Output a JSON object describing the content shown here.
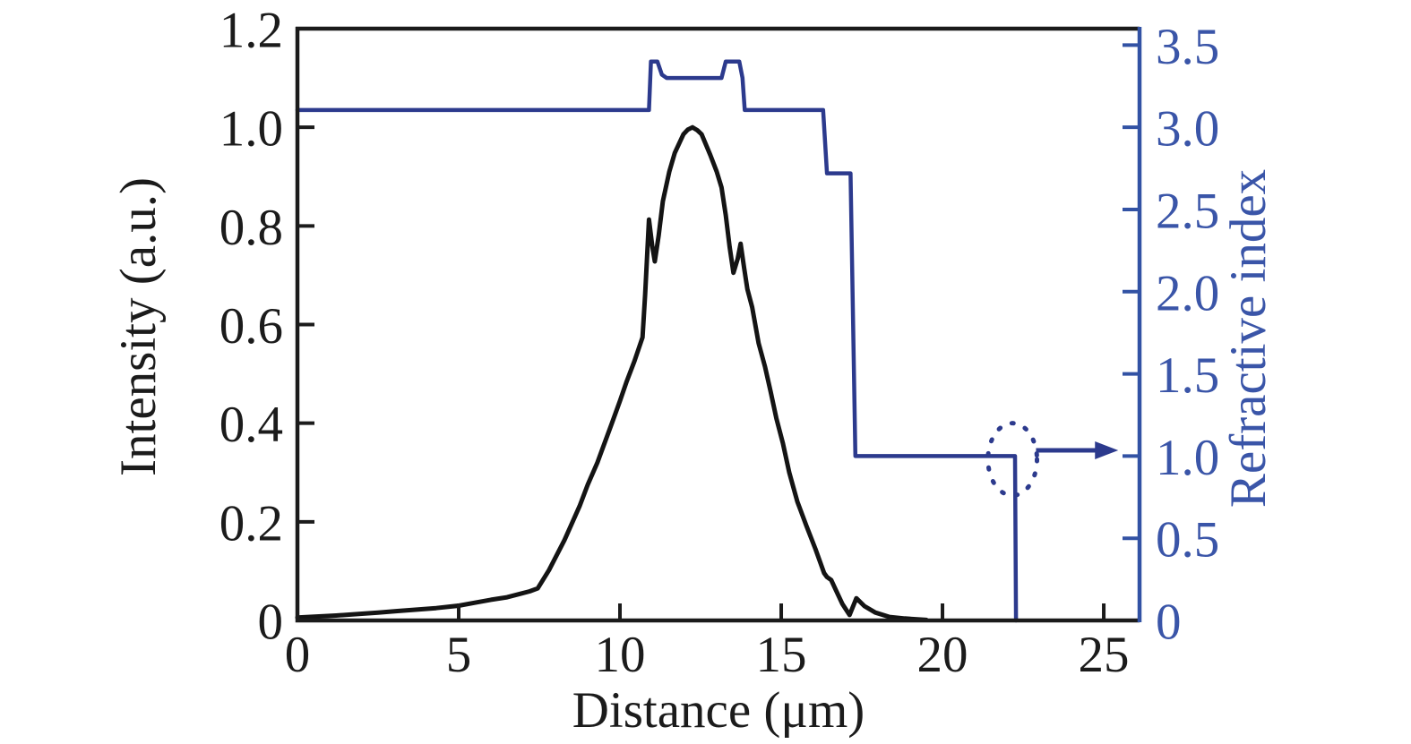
{
  "figure": {
    "background": "#ffffff",
    "colors": {
      "black_axis": "#1b1b1b",
      "intensity_curve": "#141414",
      "index_curve": "#2c3a8d",
      "blue_axis": "#3252a4",
      "blue_text": "#3a55a8"
    },
    "x_axis": {
      "label": "Distance (μm)",
      "range": [
        0,
        26.11
      ],
      "tick_labels": [
        "0",
        "5",
        "10",
        "15",
        "20",
        "25"
      ],
      "tick_values": [
        0,
        5,
        10,
        15,
        20,
        25
      ],
      "tick_marks": [
        5,
        10,
        15,
        20,
        25
      ]
    },
    "y_left": {
      "label": "Intensity (a.u.)",
      "range": [
        0,
        1.2
      ],
      "tick_labels": [
        "0",
        "0.2",
        "0.4",
        "0.6",
        "0.8",
        "1.0",
        "1.2"
      ],
      "tick_values": [
        0,
        0.2,
        0.4,
        0.6,
        0.8,
        1.0,
        1.2
      ],
      "tick_marks": [
        0.2,
        0.4,
        0.6,
        0.8,
        1.0
      ]
    },
    "y_right": {
      "label": "Refractive index",
      "range": [
        0,
        3.6
      ],
      "tick_labels": [
        "0",
        "0.5",
        "1.0",
        "1.5",
        "2.0",
        "2.5",
        "3.0",
        "3.5"
      ],
      "tick_values": [
        0,
        0.5,
        1.0,
        1.5,
        2.0,
        2.5,
        3.0,
        3.5
      ],
      "tick_marks": [
        0.5,
        1.0,
        1.5,
        2.0,
        2.5,
        3.0,
        3.5
      ]
    }
  },
  "chart_data": {
    "type": "line",
    "title": "",
    "xlabel": "Distance (μm)",
    "ylabel_left": "Intensity (a.u.)",
    "ylabel_right": "Refractive index",
    "xlim": [
      0,
      26.11
    ],
    "ylim_left": [
      0,
      1.2
    ],
    "ylim_right": [
      0,
      3.6
    ],
    "grid": false,
    "legend": "none",
    "series": [
      {
        "name": "Intensity",
        "axis": "left",
        "color": "#141414",
        "width": 5,
        "points": [
          [
            0,
            0.006
          ],
          [
            0.6,
            0.008
          ],
          [
            1.2,
            0.01
          ],
          [
            1.9,
            0.013
          ],
          [
            2.5,
            0.016
          ],
          [
            3.1,
            0.019
          ],
          [
            3.7,
            0.022
          ],
          [
            4.3,
            0.025
          ],
          [
            5.0,
            0.03
          ],
          [
            5.5,
            0.036
          ],
          [
            6.0,
            0.042
          ],
          [
            6.5,
            0.047
          ],
          [
            6.9,
            0.054
          ],
          [
            7.2,
            0.059
          ],
          [
            7.45,
            0.065
          ],
          [
            7.8,
            0.102
          ],
          [
            8.28,
            0.163
          ],
          [
            8.75,
            0.232
          ],
          [
            9.0,
            0.275
          ],
          [
            9.3,
            0.32
          ],
          [
            9.75,
            0.4
          ],
          [
            10.0,
            0.445
          ],
          [
            10.2,
            0.483
          ],
          [
            10.45,
            0.526
          ],
          [
            10.7,
            0.574
          ],
          [
            10.78,
            0.66
          ],
          [
            10.9,
            0.813
          ],
          [
            11.0,
            0.76
          ],
          [
            11.08,
            0.728
          ],
          [
            11.2,
            0.78
          ],
          [
            11.33,
            0.85
          ],
          [
            11.53,
            0.91
          ],
          [
            11.7,
            0.948
          ],
          [
            11.97,
            0.986
          ],
          [
            12.1,
            0.995
          ],
          [
            12.25,
            1.0
          ],
          [
            12.4,
            0.994
          ],
          [
            12.53,
            0.986
          ],
          [
            12.8,
            0.944
          ],
          [
            13.0,
            0.91
          ],
          [
            13.15,
            0.878
          ],
          [
            13.28,
            0.822
          ],
          [
            13.4,
            0.758
          ],
          [
            13.52,
            0.705
          ],
          [
            13.65,
            0.733
          ],
          [
            13.74,
            0.764
          ],
          [
            13.85,
            0.715
          ],
          [
            13.95,
            0.672
          ],
          [
            14.1,
            0.635
          ],
          [
            14.3,
            0.562
          ],
          [
            14.5,
            0.514
          ],
          [
            14.67,
            0.465
          ],
          [
            14.85,
            0.41
          ],
          [
            15.05,
            0.36
          ],
          [
            15.25,
            0.3
          ],
          [
            15.5,
            0.241
          ],
          [
            15.78,
            0.192
          ],
          [
            16.06,
            0.145
          ],
          [
            16.33,
            0.096
          ],
          [
            16.42,
            0.088
          ],
          [
            16.55,
            0.082
          ],
          [
            16.75,
            0.054
          ],
          [
            16.9,
            0.033
          ],
          [
            17.12,
            0.011
          ],
          [
            17.33,
            0.045
          ],
          [
            17.58,
            0.029
          ],
          [
            17.92,
            0.016
          ],
          [
            18.36,
            0.007
          ],
          [
            18.83,
            0.004
          ],
          [
            19.5,
            0.001
          ]
        ]
      },
      {
        "name": "Refractive index",
        "axis": "right",
        "color": "#2c3a8d",
        "width": 4.5,
        "points": [
          [
            0,
            3.105
          ],
          [
            10.9,
            3.105
          ],
          [
            10.96,
            3.4
          ],
          [
            11.16,
            3.4
          ],
          [
            11.3,
            3.32
          ],
          [
            11.45,
            3.3
          ],
          [
            13.15,
            3.3
          ],
          [
            13.28,
            3.4
          ],
          [
            13.7,
            3.4
          ],
          [
            13.8,
            3.3
          ],
          [
            13.87,
            3.105
          ],
          [
            16.3,
            3.105
          ],
          [
            16.42,
            2.72
          ],
          [
            17.15,
            2.72
          ],
          [
            17.3,
            1.0
          ],
          [
            22.25,
            1.0
          ],
          [
            22.28,
            0.0
          ]
        ]
      }
    ],
    "annotations": {
      "dotted_ellipse": {
        "cx_um": 22.17,
        "cy_n": 0.98,
        "rx_um": 0.76,
        "ry_n": 0.22,
        "color": "#2c3a8d"
      },
      "arrow": {
        "x1_um": 22.9,
        "x2_um": 25.45,
        "y_n": 1.035,
        "color": "#2c3a8d",
        "meaning": "points-to-right-axis"
      }
    }
  }
}
